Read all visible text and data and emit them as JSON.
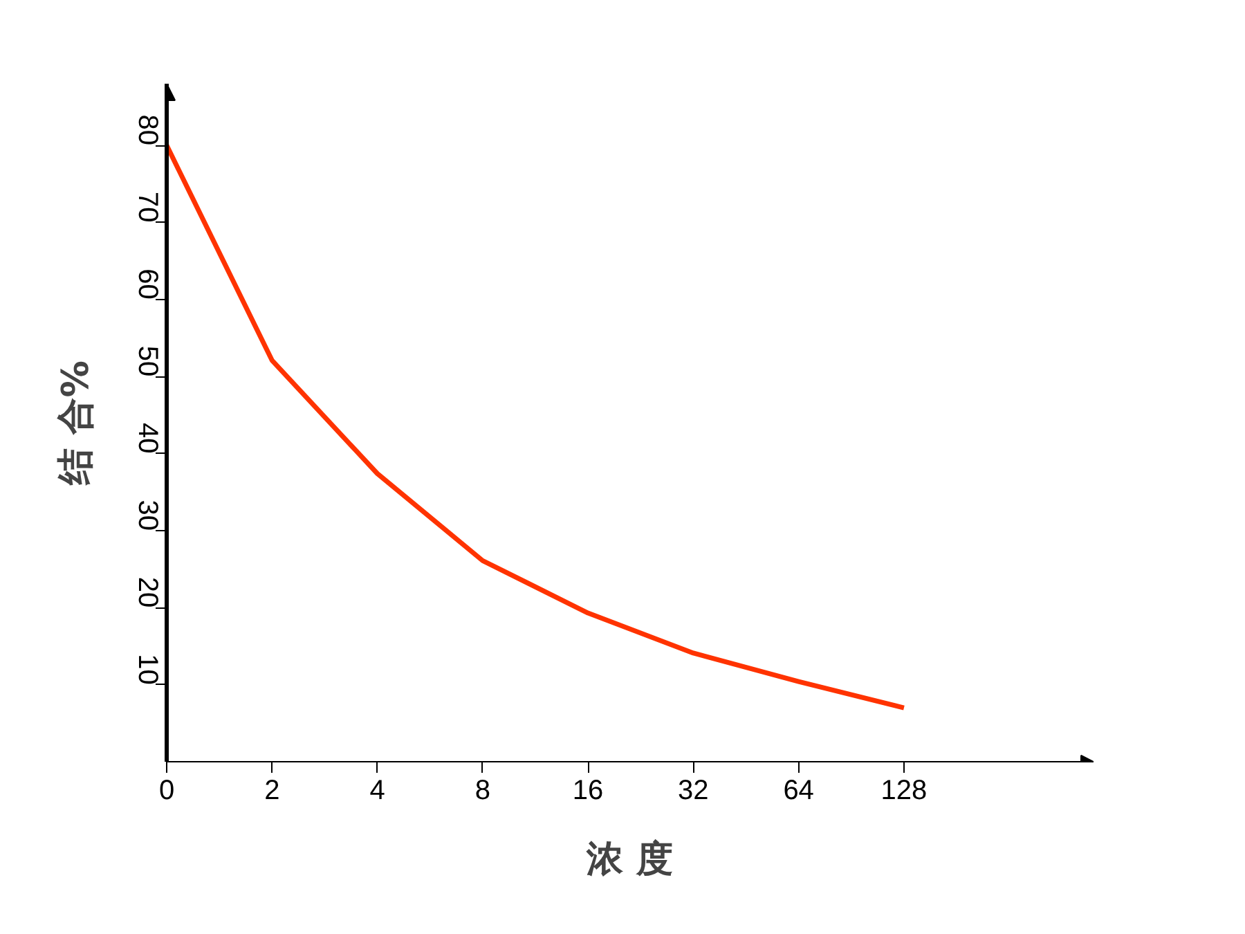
{
  "chart_data": {
    "type": "line",
    "xlabel": "浓 度",
    "ylabel": "结 合%",
    "categories": [
      "0",
      "2",
      "4",
      "8",
      "16",
      "32",
      "64",
      "128"
    ],
    "series": [
      {
        "color": "#ff3300",
        "values": [
          80,
          52.1,
          37.4,
          26.1,
          19.3,
          14.1,
          10.4,
          7.0
        ]
      }
    ],
    "ylim": [
      0,
      88
    ],
    "yticks": [
      10,
      20,
      30,
      40,
      50,
      60,
      70,
      80
    ],
    "grid": false,
    "marker": "none",
    "line_style": "solid"
  }
}
